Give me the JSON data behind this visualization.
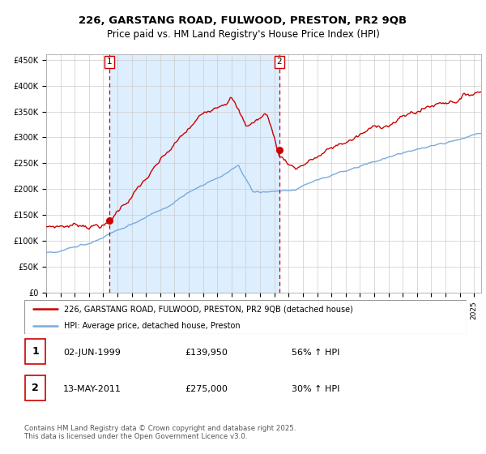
{
  "title_line1": "226, GARSTANG ROAD, FULWOOD, PRESTON, PR2 9QB",
  "title_line2": "Price paid vs. HM Land Registry's House Price Index (HPI)",
  "ylim": [
    0,
    460000
  ],
  "yticks": [
    0,
    50000,
    100000,
    150000,
    200000,
    250000,
    300000,
    350000,
    400000,
    450000
  ],
  "ytick_labels": [
    "£0",
    "£50K",
    "£100K",
    "£150K",
    "£200K",
    "£250K",
    "£300K",
    "£350K",
    "£400K",
    "£450K"
  ],
  "sale1_date_x": 1999.42,
  "sale1_price": 139950,
  "sale1_label": "02-JUN-1999",
  "sale1_amount": "£139,950",
  "sale1_hpi": "56% ↑ HPI",
  "sale2_date_x": 2011.36,
  "sale2_price": 275000,
  "sale2_label": "13-MAY-2011",
  "sale2_amount": "£275,000",
  "sale2_hpi": "30% ↑ HPI",
  "red_color": "#cc0000",
  "blue_color": "#7aabdb",
  "shade_color": "#ddeeff",
  "grid_color": "#cccccc",
  "background_color": "#ffffff",
  "legend_line1": "226, GARSTANG ROAD, FULWOOD, PRESTON, PR2 9QB (detached house)",
  "legend_line2": "HPI: Average price, detached house, Preston",
  "footer": "Contains HM Land Registry data © Crown copyright and database right 2025.\nThis data is licensed under the Open Government Licence v3.0.",
  "xmin": 1995.0,
  "xmax": 2025.5
}
